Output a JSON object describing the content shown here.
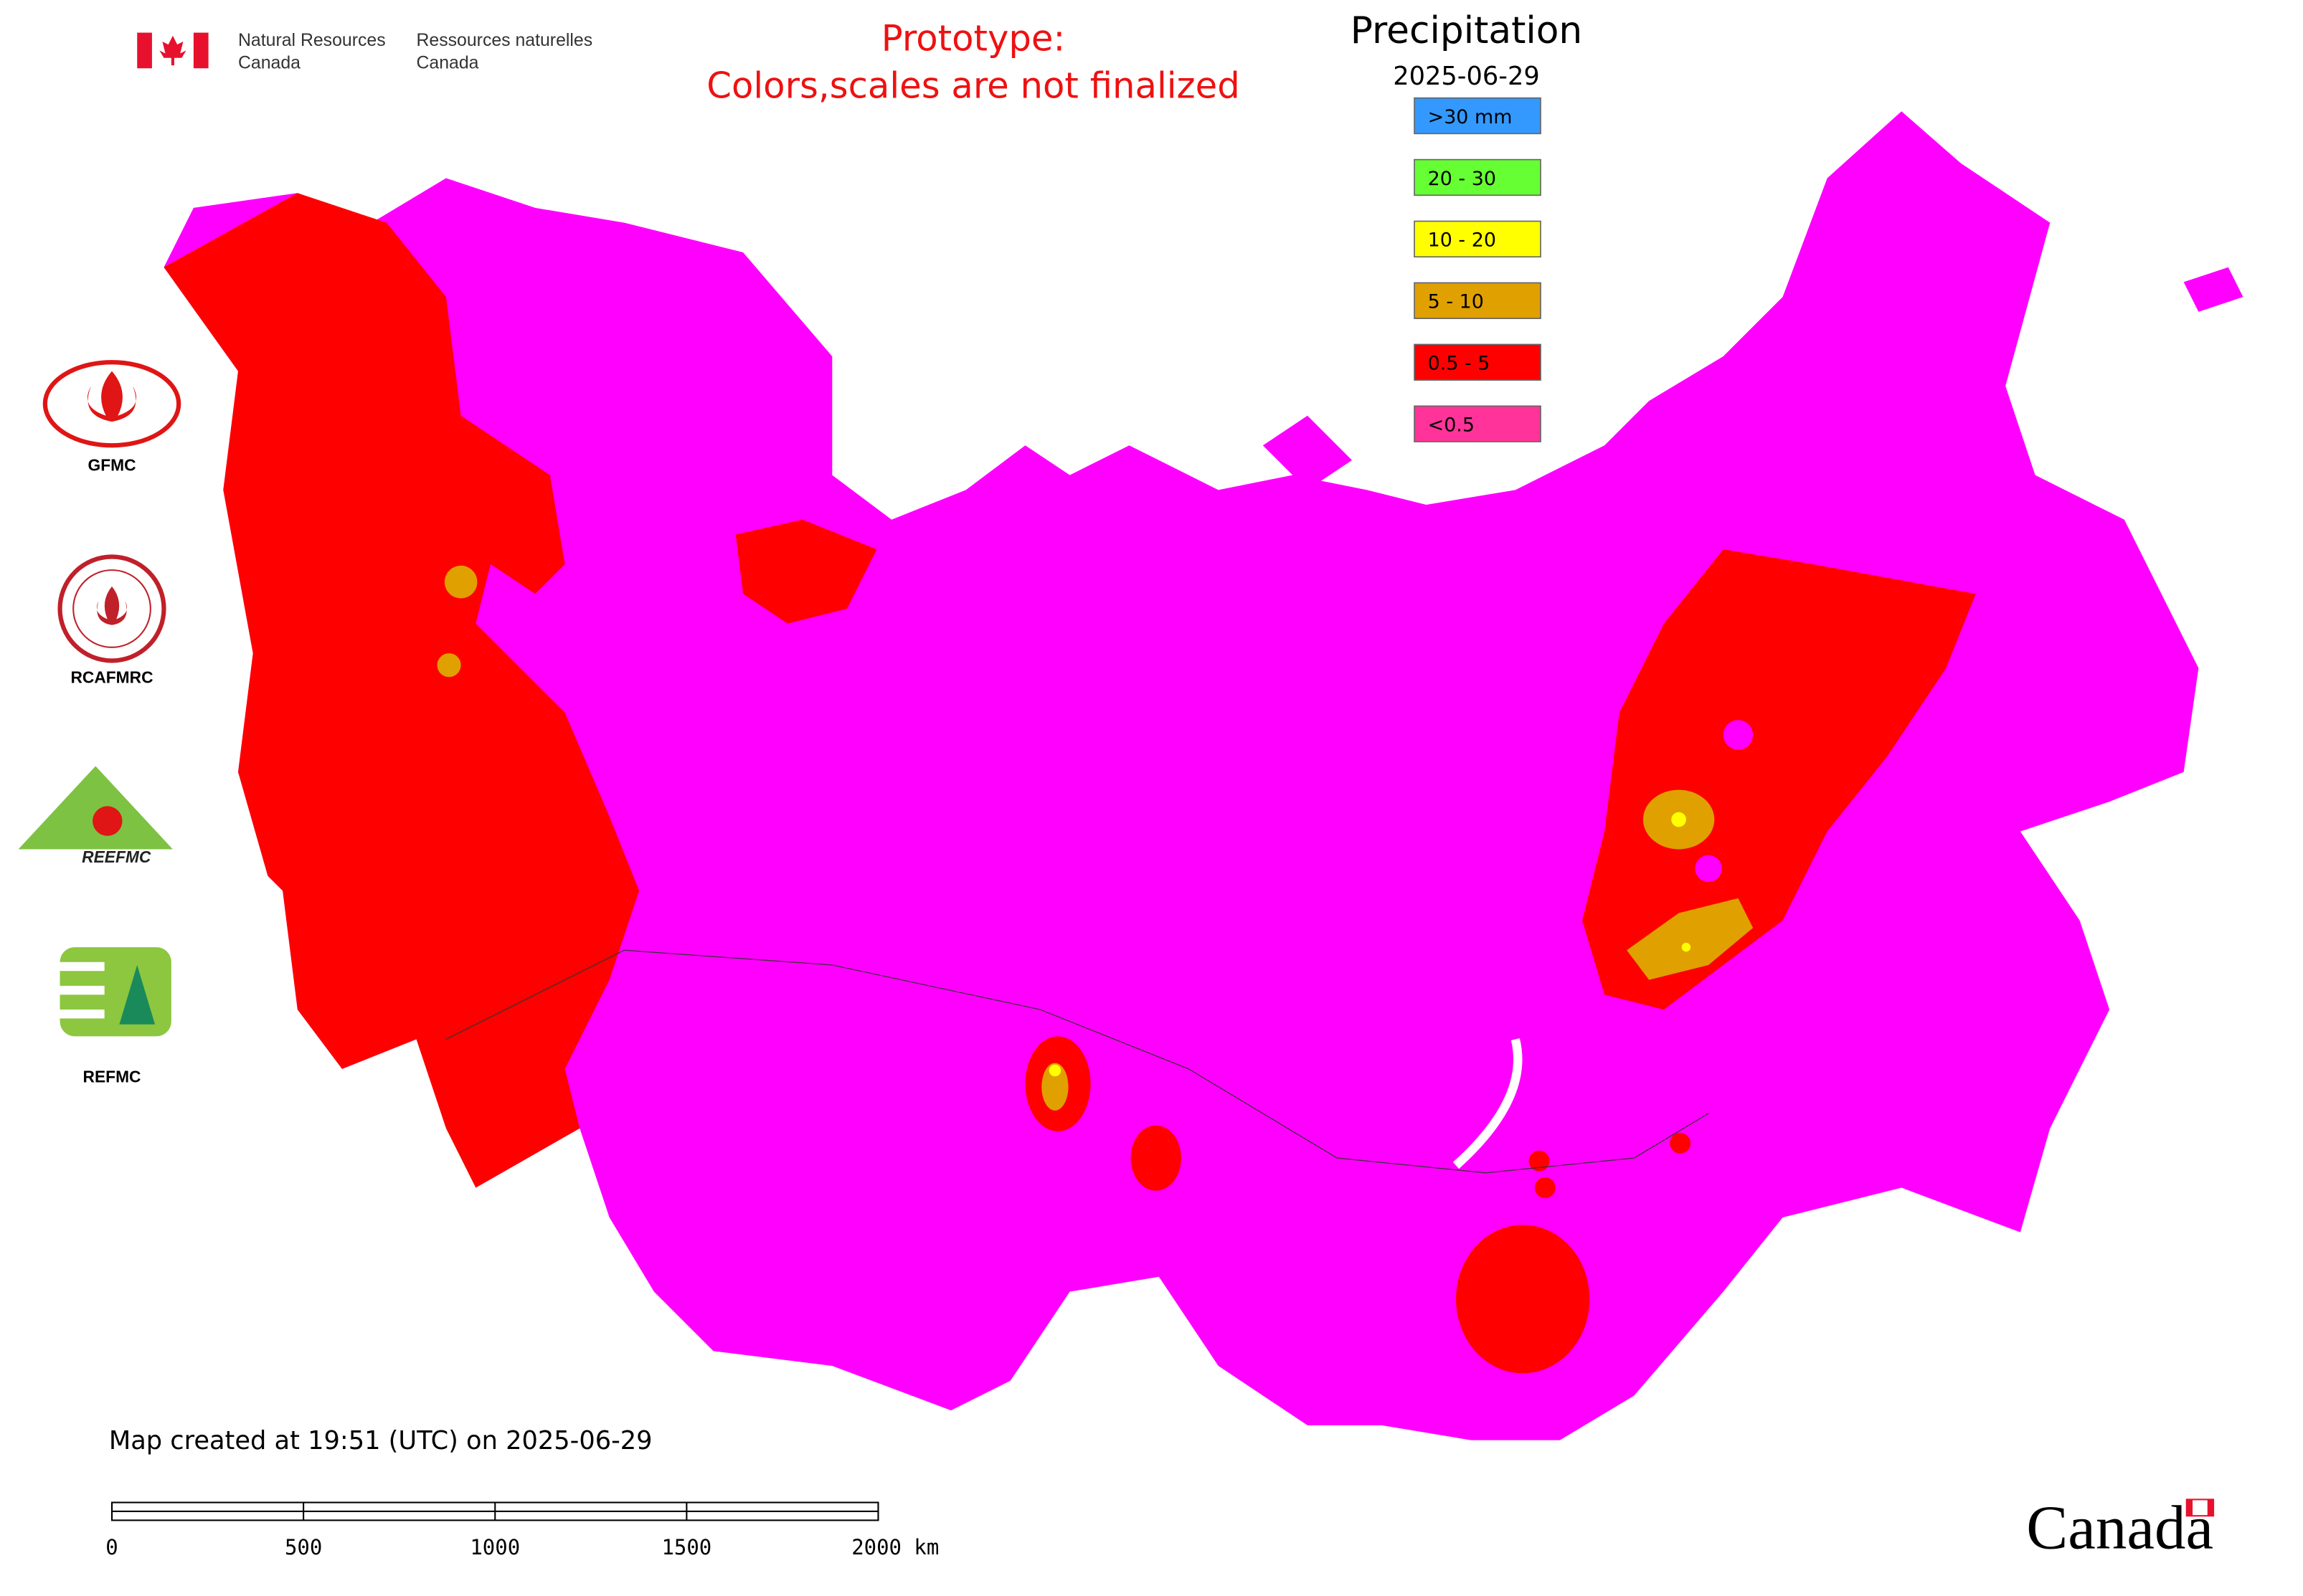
{
  "header": {
    "department_en_1": "Natural Resources",
    "department_en_2": "Canada",
    "department_fr_1": "Ressources naturelles",
    "department_fr_2": "Canada"
  },
  "notice": {
    "line1": "Prototype:",
    "line2": "Colors,scales are not finalized"
  },
  "legend": {
    "title": "Precipitation",
    "date": "2025-06-29",
    "items": [
      {
        "label": ">30 mm",
        "color": "#3399ff"
      },
      {
        "label": "20 - 30",
        "color": "#66ff33"
      },
      {
        "label": "10 - 20",
        "color": "#ffff00"
      },
      {
        "label": "5 - 10",
        "color": "#e0a000"
      },
      {
        "label": "0.5 - 5",
        "color": "#ff0000"
      },
      {
        "label": "<0.5",
        "color": "#ff3399"
      }
    ]
  },
  "partners": [
    "GFMC",
    "RCAFMRC",
    "REEFMC",
    "REFMC"
  ],
  "footer": {
    "created": "Map created at 19:51 (UTC) on 2025-06-29",
    "scale_labels": [
      "0",
      "500",
      "1000",
      "1500",
      "2000 km"
    ],
    "wordmark": "Canada"
  }
}
